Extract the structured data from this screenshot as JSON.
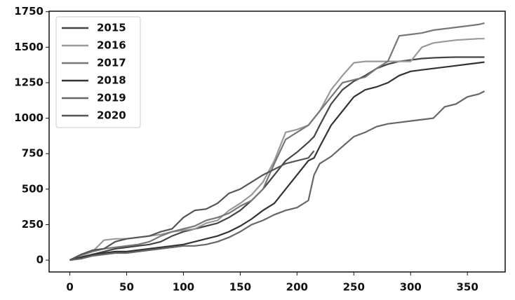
{
  "chart_data": {
    "type": "line",
    "x": [
      0,
      10,
      20,
      30,
      40,
      50,
      60,
      70,
      80,
      90,
      100,
      110,
      120,
      130,
      140,
      150,
      160,
      170,
      180,
      190,
      200,
      210,
      215,
      220,
      230,
      240,
      250,
      260,
      270,
      280,
      290,
      300,
      310,
      320,
      330,
      340,
      350,
      360,
      365
    ],
    "series": [
      {
        "name": "2015",
        "color": "#444444",
        "values": [
          0,
          20,
          40,
          60,
          80,
          90,
          100,
          110,
          130,
          170,
          200,
          220,
          240,
          260,
          300,
          350,
          420,
          500,
          600,
          700,
          760,
          830,
          870,
          950,
          1100,
          1200,
          1260,
          1300,
          1350,
          1380,
          1400,
          1410,
          1420,
          1425,
          1428,
          1430,
          1430,
          1430,
          1430
        ]
      },
      {
        "name": "2016",
        "color": "#999999",
        "values": [
          0,
          30,
          60,
          140,
          150,
          150,
          160,
          170,
          180,
          200,
          210,
          220,
          260,
          280,
          350,
          400,
          460,
          550,
          700,
          900,
          920,
          950,
          1000,
          1050,
          1200,
          1300,
          1390,
          1400,
          1400,
          1400,
          1400,
          1400,
          1500,
          1530,
          1540,
          1550,
          1555,
          1560,
          1560
        ]
      },
      {
        "name": "2017",
        "color": "#777777",
        "values": [
          0,
          40,
          60,
          80,
          90,
          100,
          110,
          130,
          170,
          200,
          220,
          240,
          280,
          300,
          330,
          380,
          420,
          500,
          680,
          850,
          900,
          950,
          1000,
          1050,
          1150,
          1250,
          1270,
          1290,
          1350,
          1400,
          1580,
          1590,
          1600,
          1620,
          1630,
          1640,
          1650,
          1660,
          1670
        ]
      },
      {
        "name": "2018",
        "color": "#333333",
        "values": [
          0,
          20,
          40,
          50,
          60,
          60,
          70,
          80,
          90,
          100,
          110,
          130,
          150,
          170,
          200,
          240,
          290,
          350,
          400,
          500,
          600,
          700,
          720,
          800,
          950,
          1050,
          1150,
          1200,
          1220,
          1250,
          1300,
          1330,
          1340,
          1350,
          1360,
          1370,
          1380,
          1390,
          1395
        ]
      },
      {
        "name": "2019",
        "color": "#666666",
        "values": [
          0,
          10,
          30,
          40,
          50,
          50,
          60,
          70,
          80,
          90,
          100,
          100,
          110,
          130,
          160,
          200,
          250,
          280,
          320,
          350,
          370,
          420,
          600,
          680,
          730,
          800,
          870,
          900,
          940,
          960,
          970,
          980,
          990,
          1000,
          1080,
          1100,
          1150,
          1170,
          1190
        ]
      },
      {
        "name": "2020",
        "color": "#555555",
        "values": [
          0,
          40,
          70,
          80,
          130,
          150,
          160,
          170,
          200,
          220,
          300,
          350,
          360,
          400,
          470,
          500,
          550,
          600,
          640,
          680,
          700,
          720,
          770,
          null,
          null,
          null,
          null,
          null,
          null,
          null,
          null,
          null,
          null,
          null,
          null,
          null,
          null,
          null,
          null
        ]
      }
    ],
    "xlim": [
      -18.25,
      383.25
    ],
    "ylim": [
      -83.5,
      1753.5
    ],
    "xticks": [
      0,
      50,
      100,
      150,
      200,
      250,
      300,
      350
    ],
    "yticks": [
      0,
      250,
      500,
      750,
      1000,
      1250,
      1500,
      1750
    ],
    "legend": "upper left",
    "grid": false
  }
}
